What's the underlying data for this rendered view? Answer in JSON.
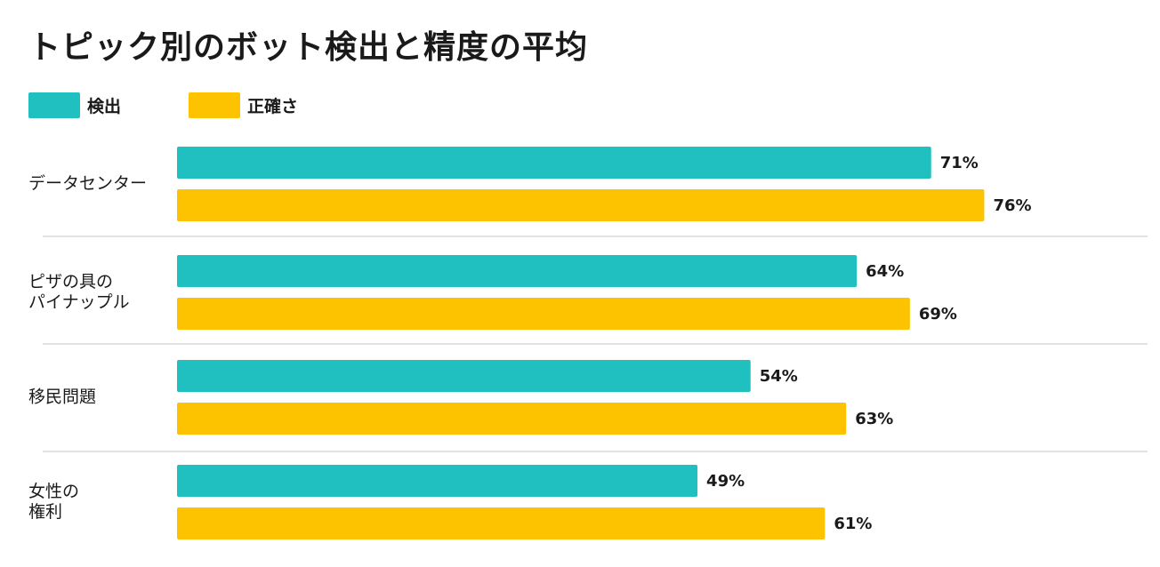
{
  "title": "トピック別のボット検出と精度の平均",
  "legend": [
    {
      "label": "検出",
      "color": "#20c0c0"
    },
    {
      "label": "正確さ",
      "color": "#fdc300"
    }
  ],
  "chart_data": {
    "type": "bar",
    "orientation": "horizontal",
    "title": "トピック別のボット検出と精度の平均",
    "categories": [
      [
        "データセンター"
      ],
      [
        "ピザの具の",
        "パイナップル"
      ],
      [
        "移民問題"
      ],
      [
        "女性の",
        "権利"
      ]
    ],
    "series": [
      {
        "name": "検出",
        "color": "#20c0c0",
        "values": [
          71,
          64,
          54,
          49
        ],
        "labels": [
          "71%",
          "64%",
          "54%",
          "49%"
        ]
      },
      {
        "name": "正確さ",
        "color": "#fdc300",
        "values": [
          76,
          69,
          63,
          61
        ],
        "labels": [
          "76%",
          "69%",
          "63%",
          "61%"
        ]
      }
    ],
    "unit": "%",
    "xlim": [
      0,
      100
    ],
    "grid": false,
    "legend_position": "top-left"
  }
}
